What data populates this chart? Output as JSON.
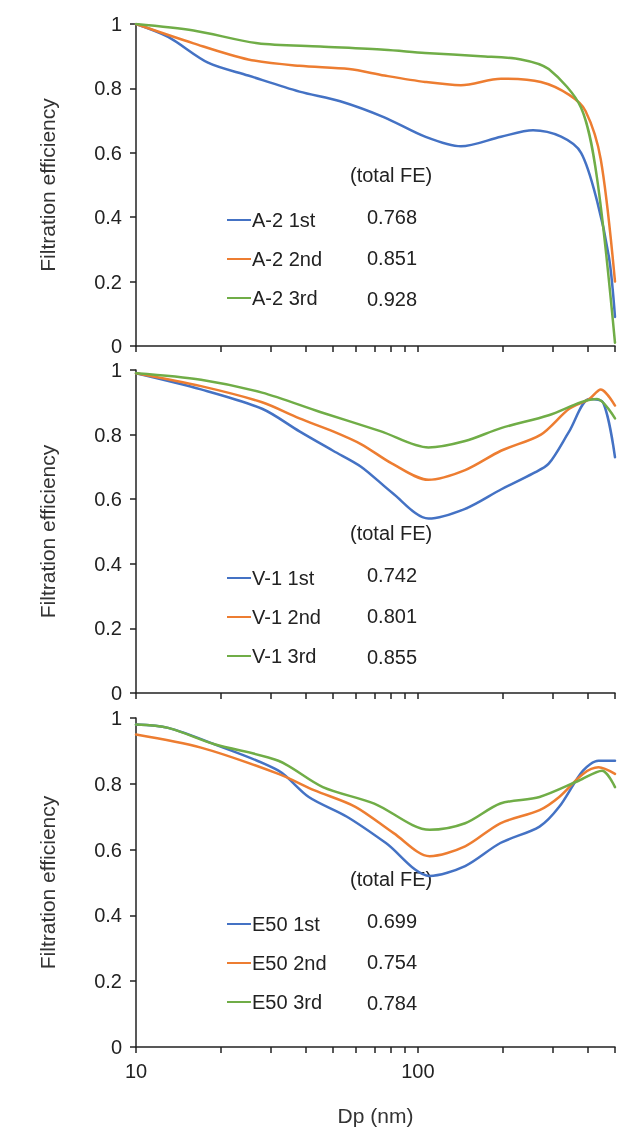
{
  "chart_data": [
    {
      "type": "line",
      "ylabel": "Filtration efficiency",
      "legend_title": "(total FE)",
      "legend": "bottom",
      "tick_labels": "y",
      "log": "x",
      "xlim": [
        10,
        500
      ],
      "ylim": [
        0,
        1
      ],
      "xticks": [
        {
          "value": 10,
          "label": null
        },
        {
          "value": 20,
          "label": null
        },
        {
          "value": 30,
          "label": null
        },
        {
          "value": 40,
          "label": null
        },
        {
          "value": 50,
          "label": null
        },
        {
          "value": 60,
          "label": null
        },
        {
          "value": 70,
          "label": null
        },
        {
          "value": 80,
          "label": null
        },
        {
          "value": 90,
          "label": null
        },
        {
          "value": 100,
          "label": null
        },
        {
          "value": 200,
          "label": null
        },
        {
          "value": 300,
          "label": null
        },
        {
          "value": 400,
          "label": null
        },
        {
          "value": 500,
          "label": null
        }
      ],
      "yticks": [
        0,
        0.2,
        0.4,
        0.6,
        0.8,
        1
      ],
      "annotations": [
        "0.768",
        "0.851",
        "0.928"
      ],
      "series": [
        {
          "name": "A-2 1st",
          "color": "#4472c4",
          "x": [
            10,
            13,
            18,
            25,
            38,
            53,
            76,
            106,
            142,
            197,
            256,
            322,
            379,
            432,
            477,
            500
          ],
          "values": [
            1,
            0.96,
            0.88,
            0.84,
            0.79,
            0.76,
            0.71,
            0.65,
            0.62,
            0.65,
            0.67,
            0.65,
            0.6,
            0.45,
            0.27,
            0.09
          ]
        },
        {
          "name": "A-2 2nd",
          "color": "#ed7d31",
          "x": [
            10,
            16,
            25,
            38,
            57,
            76,
            106,
            142,
            197,
            273,
            344,
            393,
            445,
            500
          ],
          "values": [
            1,
            0.94,
            0.89,
            0.87,
            0.86,
            0.84,
            0.82,
            0.81,
            0.83,
            0.82,
            0.78,
            0.73,
            0.58,
            0.2
          ]
        },
        {
          "name": "A-2 3rd",
          "color": "#70ad47",
          "x": [
            10,
            16,
            27,
            45,
            76,
            106,
            167,
            232,
            291,
            379,
            432,
            500
          ],
          "values": [
            1,
            0.98,
            0.94,
            0.93,
            0.92,
            0.91,
            0.9,
            0.89,
            0.86,
            0.74,
            0.52,
            0.01
          ]
        }
      ]
    },
    {
      "type": "line",
      "ylabel": "Filtration efficiency",
      "legend_title": "(total FE)",
      "legend": "bottom",
      "tick_labels": "y",
      "log": "x",
      "xlim": [
        10,
        500
      ],
      "ylim": [
        0,
        1
      ],
      "xticks": [
        {
          "value": 10,
          "label": null
        },
        {
          "value": 20,
          "label": null
        },
        {
          "value": 30,
          "label": null
        },
        {
          "value": 40,
          "label": null
        },
        {
          "value": 50,
          "label": null
        },
        {
          "value": 60,
          "label": null
        },
        {
          "value": 70,
          "label": null
        },
        {
          "value": 80,
          "label": null
        },
        {
          "value": 90,
          "label": null
        },
        {
          "value": 100,
          "label": null
        },
        {
          "value": 200,
          "label": null
        },
        {
          "value": 300,
          "label": null
        },
        {
          "value": 400,
          "label": null
        },
        {
          "value": 500,
          "label": null
        }
      ],
      "yticks": [
        0,
        0.2,
        0.4,
        0.6,
        0.8,
        1
      ],
      "annotations": [
        "0.742",
        "0.801",
        "0.855"
      ],
      "series": [
        {
          "name": "V-1 1st",
          "color": "#4472c4",
          "x": [
            10,
            17,
            28,
            38,
            50,
            63,
            81,
            109,
            147,
            197,
            256,
            291,
            344,
            405,
            453,
            500
          ],
          "values": [
            0.99,
            0.94,
            0.88,
            0.81,
            0.75,
            0.7,
            0.62,
            0.54,
            0.57,
            0.63,
            0.68,
            0.71,
            0.81,
            0.91,
            0.9,
            0.73
          ]
        },
        {
          "name": "V-1 2nd",
          "color": "#ed7d31",
          "x": [
            10,
            17,
            28,
            38,
            50,
            63,
            81,
            109,
            147,
            197,
            273,
            344,
            405,
            445,
            500
          ],
          "values": [
            0.99,
            0.95,
            0.9,
            0.85,
            0.81,
            0.77,
            0.71,
            0.66,
            0.69,
            0.75,
            0.8,
            0.88,
            0.91,
            0.94,
            0.89
          ]
        },
        {
          "name": "V-1 3rd",
          "color": "#70ad47",
          "x": [
            10,
            17,
            28,
            45,
            74,
            109,
            147,
            197,
            291,
            379,
            432,
            500
          ],
          "values": [
            0.99,
            0.97,
            0.93,
            0.87,
            0.81,
            0.76,
            0.78,
            0.82,
            0.86,
            0.9,
            0.91,
            0.85
          ]
        }
      ]
    },
    {
      "type": "line",
      "ylabel": "Filtration efficiency",
      "xlabel": "Dp (nm)",
      "legend_title": "(total FE)",
      "legend": "bottom",
      "log": "x",
      "xlim": [
        10,
        500
      ],
      "ylim": [
        0,
        1
      ],
      "xticks": [
        10,
        {
          "value": 20,
          "label": null
        },
        {
          "value": 30,
          "label": null
        },
        {
          "value": 40,
          "label": null
        },
        {
          "value": 50,
          "label": null
        },
        {
          "value": 60,
          "label": null
        },
        {
          "value": 70,
          "label": null
        },
        {
          "value": 80,
          "label": null
        },
        {
          "value": 90,
          "label": null
        },
        100,
        {
          "value": 200,
          "label": null
        },
        {
          "value": 300,
          "label": null
        },
        {
          "value": 400,
          "label": null
        },
        {
          "value": 500,
          "label": null
        }
      ],
      "yticks": [
        0,
        0.2,
        0.4,
        0.6,
        0.8,
        1
      ],
      "annotations": [
        "0.699",
        "0.754",
        "0.784"
      ],
      "series": [
        {
          "name": "E50 1st",
          "color": "#4472c4",
          "x": [
            10,
            13,
            19,
            32,
            41,
            56,
            77,
            110,
            147,
            196,
            270,
            317,
            385,
            437,
            500
          ],
          "values": [
            0.98,
            0.97,
            0.92,
            0.84,
            0.76,
            0.7,
            0.62,
            0.52,
            0.55,
            0.62,
            0.67,
            0.73,
            0.84,
            0.87,
            0.87
          ]
        },
        {
          "name": "E50 2nd",
          "color": "#ed7d31",
          "x": [
            10,
            17,
            32,
            43,
            60,
            82,
            110,
            147,
            196,
            270,
            317,
            385,
            437,
            500
          ],
          "values": [
            0.95,
            0.91,
            0.83,
            0.78,
            0.73,
            0.65,
            0.58,
            0.61,
            0.68,
            0.72,
            0.76,
            0.83,
            0.85,
            0.83
          ]
        },
        {
          "name": "E50 3rd",
          "color": "#70ad47",
          "x": [
            10,
            13,
            19,
            32,
            46,
            70,
            110,
            147,
            196,
            270,
            373,
            450,
            500
          ],
          "values": [
            0.98,
            0.97,
            0.92,
            0.87,
            0.79,
            0.74,
            0.66,
            0.68,
            0.74,
            0.76,
            0.81,
            0.84,
            0.79
          ]
        }
      ]
    }
  ]
}
